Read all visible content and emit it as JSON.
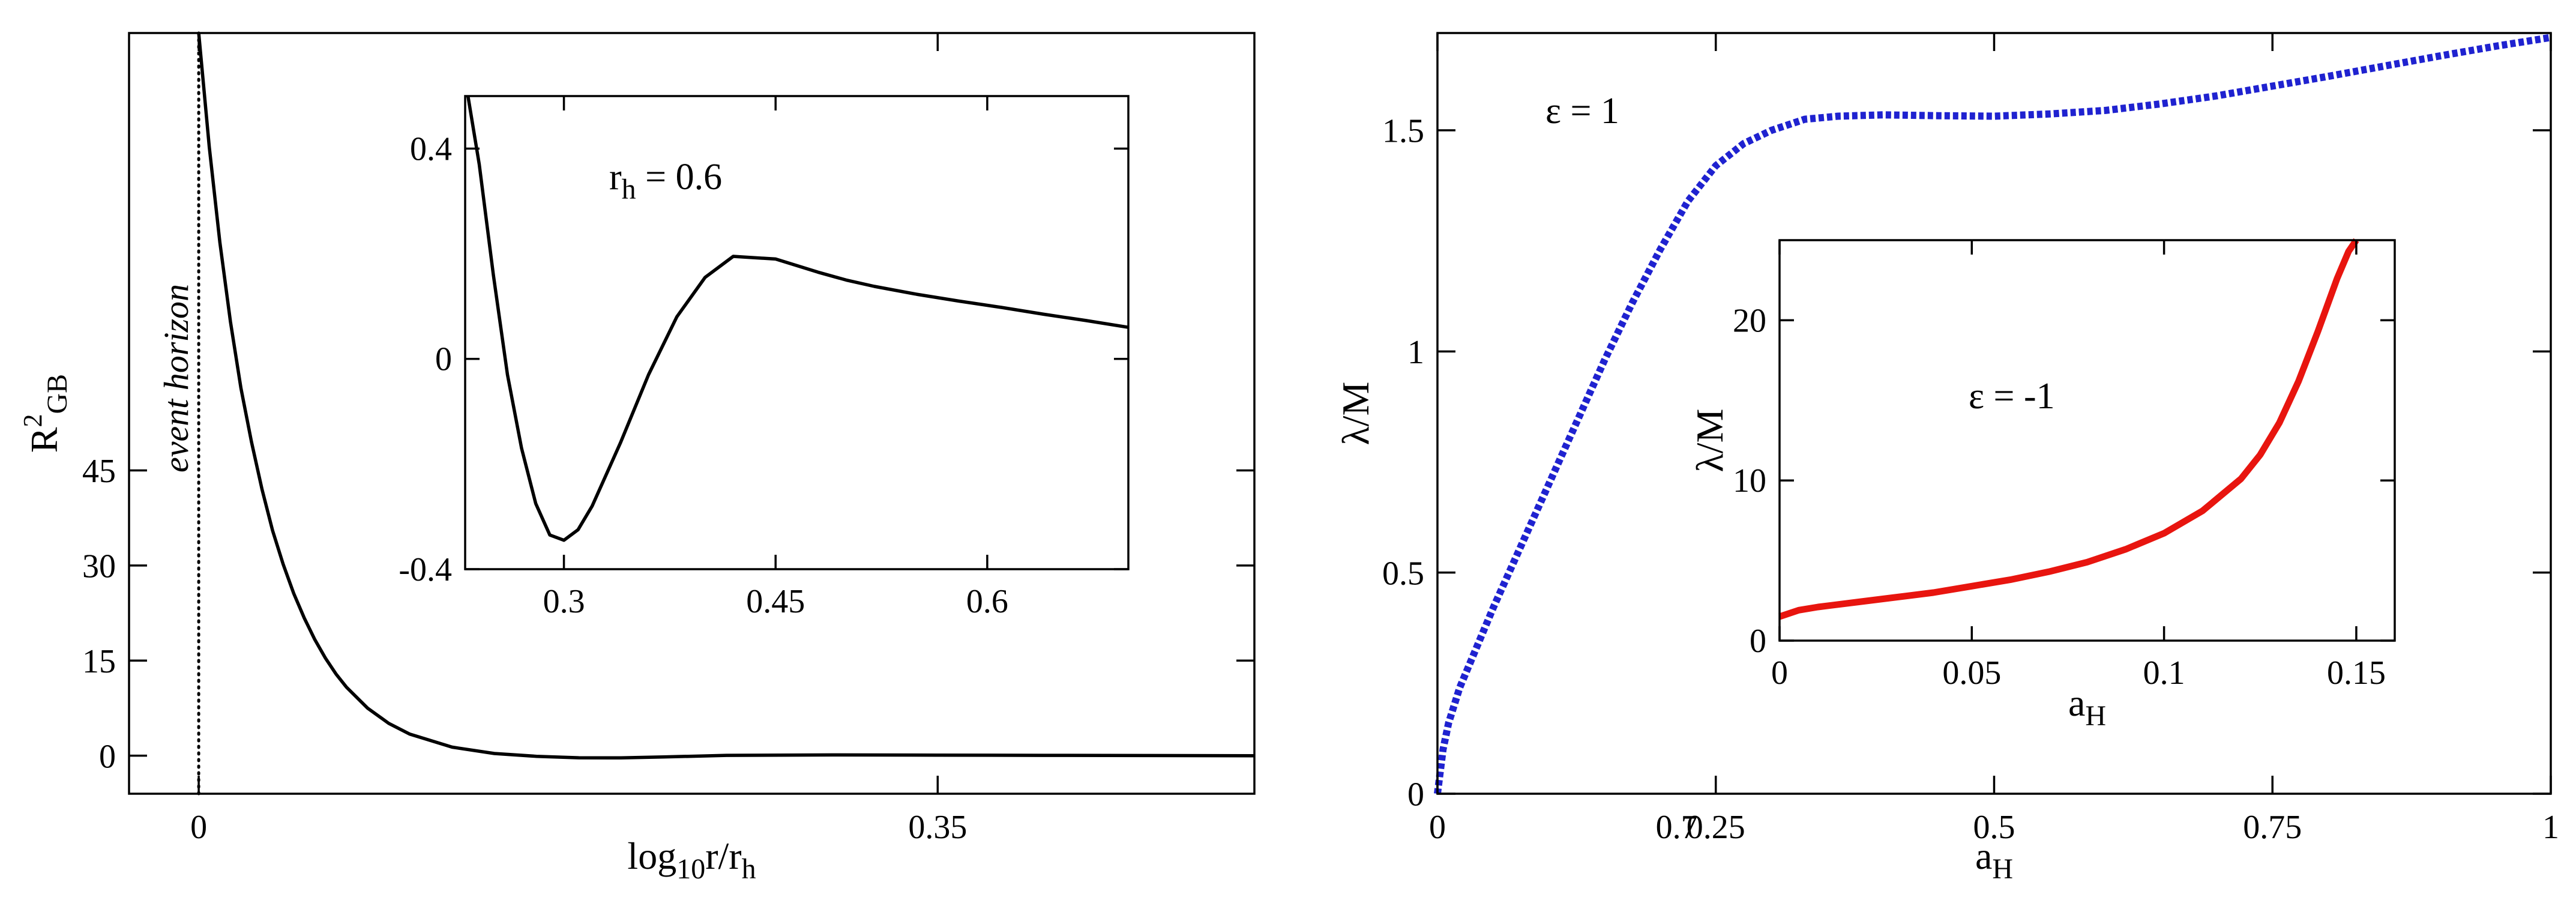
{
  "chart_data": [
    {
      "id": "left-main",
      "type": "line",
      "xlabel": {
        "main": "log",
        "sub": "10",
        "tail": "r/r",
        "sub2": "h"
      },
      "ylabel": {
        "main": "R",
        "sup": "2",
        "sub": "GB"
      },
      "xlim": [
        -0.033,
        0.5
      ],
      "ylim": [
        -6,
        114
      ],
      "xticks": [
        0,
        0.35,
        0.7
      ],
      "xtick_labels": [
        "0",
        "0.35",
        "0.7"
      ],
      "yticks": [
        0,
        15,
        30,
        45
      ],
      "ytick_labels": [
        "0",
        "15",
        "30",
        "45"
      ],
      "vline": {
        "x": 0,
        "style": "dotted",
        "label": "event horizon"
      },
      "series": [
        {
          "color": "#000000",
          "x": [
            0,
            0.005,
            0.01,
            0.015,
            0.02,
            0.025,
            0.03,
            0.035,
            0.04,
            0.045,
            0.05,
            0.055,
            0.06,
            0.065,
            0.07,
            0.08,
            0.09,
            0.1,
            0.12,
            0.14,
            0.16,
            0.18,
            0.2,
            0.22,
            0.25,
            0.3,
            0.35,
            0.4,
            0.45,
            0.5
          ],
          "y": [
            114,
            96,
            81,
            68.5,
            58,
            49.5,
            42,
            35.5,
            30.2,
            25.6,
            21.7,
            18.3,
            15.4,
            12.9,
            10.8,
            7.5,
            5.1,
            3.4,
            1.35,
            0.35,
            -0.1,
            -0.33,
            -0.35,
            -0.2,
            0.05,
            0.12,
            0.09,
            0.05,
            0.02,
            0
          ]
        }
      ]
    },
    {
      "id": "left-inset",
      "type": "line",
      "xlim": [
        0.23,
        0.7
      ],
      "ylim": [
        -0.4,
        0.5
      ],
      "xticks": [
        0.3,
        0.45,
        0.6
      ],
      "xtick_labels": [
        "0.3",
        "0.45",
        "0.6"
      ],
      "yticks": [
        -0.4,
        0,
        0.4
      ],
      "ytick_labels": [
        "-0.4",
        "0",
        "0.4"
      ],
      "annotation": {
        "main": "r",
        "sub": "h",
        "tail": " = 0.6"
      },
      "series": [
        {
          "color": "#000000",
          "x": [
            0.232,
            0.24,
            0.25,
            0.26,
            0.27,
            0.28,
            0.29,
            0.3,
            0.31,
            0.32,
            0.34,
            0.36,
            0.38,
            0.4,
            0.42,
            0.45,
            0.48,
            0.5,
            0.52,
            0.55,
            0.58,
            0.61,
            0.64,
            0.67,
            0.7
          ],
          "y": [
            0.5,
            0.37,
            0.16,
            -0.03,
            -0.17,
            -0.275,
            -0.335,
            -0.345,
            -0.325,
            -0.28,
            -0.16,
            -0.03,
            0.08,
            0.155,
            0.195,
            0.19,
            0.165,
            0.15,
            0.138,
            0.123,
            0.11,
            0.098,
            0.085,
            0.073,
            0.06
          ]
        }
      ]
    },
    {
      "id": "right-main",
      "type": "line",
      "xlabel": {
        "main": "a",
        "sub": "H"
      },
      "ylabel": {
        "main": "λ/M"
      },
      "xlim": [
        0,
        1
      ],
      "ylim": [
        0,
        1.72
      ],
      "xticks": [
        0,
        0.25,
        0.5,
        0.75,
        1
      ],
      "xtick_labels": [
        "0",
        "0.25",
        "0.5",
        "0.75",
        "1"
      ],
      "yticks": [
        0,
        0.5,
        1,
        1.5
      ],
      "ytick_labels": [
        "0",
        "0.5",
        "1",
        "1.5"
      ],
      "annotation": {
        "main": "ε = 1"
      },
      "series": [
        {
          "color": "#1f22d0",
          "style": "dotted",
          "x": [
            0,
            0.005,
            0.01,
            0.02,
            0.03,
            0.05,
            0.075,
            0.1,
            0.125,
            0.15,
            0.175,
            0.2,
            0.225,
            0.25,
            0.275,
            0.3,
            0.33,
            0.36,
            0.4,
            0.45,
            0.5,
            0.55,
            0.6,
            0.65,
            0.7,
            0.75,
            0.8,
            0.85,
            0.9,
            0.95,
            1
          ],
          "y": [
            0,
            0.1,
            0.16,
            0.24,
            0.3,
            0.42,
            0.56,
            0.7,
            0.84,
            0.98,
            1.11,
            1.23,
            1.34,
            1.42,
            1.47,
            1.5,
            1.525,
            1.532,
            1.535,
            1.533,
            1.532,
            1.537,
            1.545,
            1.56,
            1.578,
            1.6,
            1.622,
            1.645,
            1.668,
            1.69,
            1.71
          ]
        }
      ]
    },
    {
      "id": "right-inset",
      "type": "line",
      "xlabel": {
        "main": "a",
        "sub": "H"
      },
      "ylabel": {
        "main": "λ/M"
      },
      "xlim": [
        0,
        0.16
      ],
      "ylim": [
        0,
        25
      ],
      "xticks": [
        0,
        0.05,
        0.1,
        0.15
      ],
      "xtick_labels": [
        "0",
        "0.05",
        "0.1",
        "0.15"
      ],
      "yticks": [
        0,
        10,
        20
      ],
      "ytick_labels": [
        "0",
        "10",
        "20"
      ],
      "annotation": {
        "main": "ε = -1"
      },
      "series": [
        {
          "color": "#e8150f",
          "style": "solid",
          "x": [
            0,
            0.005,
            0.01,
            0.02,
            0.03,
            0.04,
            0.05,
            0.06,
            0.07,
            0.08,
            0.09,
            0.1,
            0.11,
            0.12,
            0.125,
            0.13,
            0.135,
            0.14,
            0.145,
            0.148,
            0.15
          ],
          "y": [
            1.5,
            1.9,
            2.1,
            2.4,
            2.7,
            3.0,
            3.4,
            3.8,
            4.3,
            4.9,
            5.7,
            6.7,
            8.1,
            10.1,
            11.6,
            13.6,
            16.2,
            19.3,
            22.6,
            24.3,
            25
          ]
        }
      ]
    }
  ]
}
